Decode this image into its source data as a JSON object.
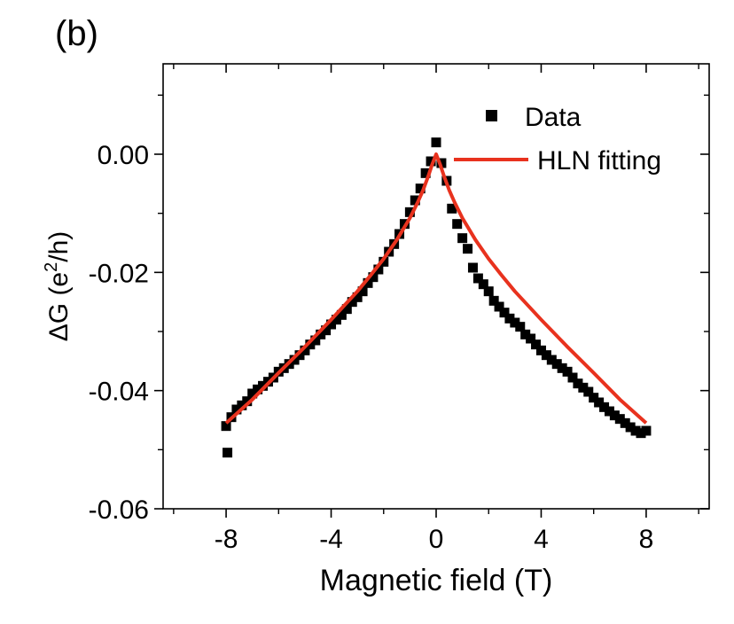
{
  "panel_label": "(b)",
  "chart_data": {
    "type": "scatter",
    "xlabel": "Magnetic field (T)",
    "ylabel_prefix": "ΔG (e",
    "ylabel_sup": "2",
    "ylabel_suffix": "/h)",
    "xlim": [
      -10.4,
      10.4
    ],
    "ylim": [
      -0.06,
      0.0153
    ],
    "x_ticks": [
      -8,
      -4,
      0,
      4,
      8
    ],
    "x_tick_labels": [
      "-8",
      "-4",
      "0",
      "4",
      "8"
    ],
    "y_ticks": [
      0.0,
      -0.02,
      -0.04,
      -0.06
    ],
    "y_tick_labels": [
      "0.00",
      "-0.02",
      "-0.04",
      "-0.06"
    ],
    "legend_position": "top-right",
    "series": [
      {
        "name": "Data",
        "marker": "square",
        "color": "#000000",
        "x": [
          -8.0,
          -7.8,
          -7.6,
          -7.4,
          -7.2,
          -7.0,
          -6.8,
          -6.6,
          -6.4,
          -6.2,
          -6.0,
          -5.8,
          -5.6,
          -5.4,
          -5.2,
          -5.0,
          -4.8,
          -4.6,
          -4.4,
          -4.2,
          -4.0,
          -3.8,
          -3.6,
          -3.4,
          -3.2,
          -3.0,
          -2.8,
          -2.6,
          -2.4,
          -2.2,
          -2.0,
          -1.8,
          -1.6,
          -1.4,
          -1.2,
          -1.0,
          -0.8,
          -0.6,
          -0.4,
          -0.2,
          0.0,
          0.2,
          0.4,
          0.6,
          0.8,
          1.0,
          1.2,
          1.4,
          1.6,
          1.8,
          2.0,
          2.2,
          2.4,
          2.6,
          2.8,
          3.0,
          3.2,
          3.4,
          3.6,
          3.8,
          4.0,
          4.2,
          4.4,
          4.6,
          4.8,
          5.0,
          5.2,
          5.4,
          5.6,
          5.8,
          6.0,
          6.2,
          6.4,
          6.6,
          6.8,
          7.0,
          7.2,
          7.4,
          7.6,
          7.8,
          8.0,
          -7.95
        ],
        "y": [
          -0.046,
          -0.0445,
          -0.0432,
          -0.0425,
          -0.0418,
          -0.0405,
          -0.0398,
          -0.0392,
          -0.0385,
          -0.0378,
          -0.0368,
          -0.0362,
          -0.0355,
          -0.0348,
          -0.034,
          -0.0332,
          -0.0322,
          -0.0315,
          -0.0305,
          -0.0298,
          -0.0288,
          -0.028,
          -0.0272,
          -0.0262,
          -0.025,
          -0.0242,
          -0.0232,
          -0.0218,
          -0.0208,
          -0.0195,
          -0.0182,
          -0.0165,
          -0.0152,
          -0.0135,
          -0.0118,
          -0.0098,
          -0.0078,
          -0.0058,
          -0.0032,
          -0.0012,
          0.002,
          -0.0015,
          -0.0045,
          -0.0092,
          -0.0118,
          -0.0142,
          -0.016,
          -0.0192,
          -0.021,
          -0.022,
          -0.0232,
          -0.0248,
          -0.0258,
          -0.0268,
          -0.0278,
          -0.0285,
          -0.0292,
          -0.0305,
          -0.0312,
          -0.0322,
          -0.0332,
          -0.034,
          -0.0348,
          -0.0355,
          -0.0362,
          -0.0368,
          -0.0378,
          -0.0388,
          -0.0395,
          -0.0402,
          -0.0412,
          -0.042,
          -0.0428,
          -0.0435,
          -0.0442,
          -0.0448,
          -0.0455,
          -0.0462,
          -0.0468,
          -0.0472,
          -0.0468,
          -0.0505
        ]
      },
      {
        "name": "HLN fitting",
        "marker": "line",
        "color": "#e8321e",
        "x": [
          -8.0,
          -7.0,
          -6.0,
          -5.0,
          -4.0,
          -3.0,
          -2.5,
          -2.0,
          -1.5,
          -1.0,
          -0.7,
          -0.5,
          -0.3,
          -0.15,
          0.0,
          0.15,
          0.3,
          0.5,
          0.7,
          1.0,
          1.5,
          2.0,
          2.5,
          3.0,
          4.0,
          5.0,
          6.0,
          7.0,
          8.0
        ],
        "y": [
          -0.0455,
          -0.0415,
          -0.037,
          -0.0326,
          -0.028,
          -0.0232,
          -0.0205,
          -0.0177,
          -0.0145,
          -0.0108,
          -0.0081,
          -0.0061,
          -0.0037,
          -0.0017,
          0.0,
          -0.0017,
          -0.0037,
          -0.0061,
          -0.0081,
          -0.0108,
          -0.0145,
          -0.0177,
          -0.0205,
          -0.0232,
          -0.028,
          -0.0326,
          -0.037,
          -0.0415,
          -0.0455
        ]
      }
    ]
  }
}
